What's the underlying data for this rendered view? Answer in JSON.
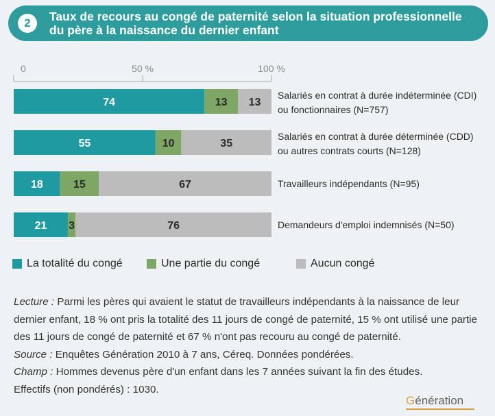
{
  "header": {
    "figure_number": "2",
    "title_line1": "Taux de recours au congé de paternité selon la situation professionnelle",
    "title_line2": "du père à la naissance du dernier enfant"
  },
  "chart_data": {
    "type": "bar",
    "orientation": "horizontal",
    "stacked": true,
    "axis_ticks": [
      "0",
      "50 %",
      "100 %"
    ],
    "xlim": [
      0,
      100
    ],
    "categories": [
      [
        "Salariés en contrat à durée indéterminée (CDI)",
        "ou fonctionnaires (N=757)"
      ],
      [
        "Salariés en contrat à durée déterminée (CDD)",
        "ou autres contrats courts (N=128)"
      ],
      [
        "Travailleurs indépendants (N=95)"
      ],
      [
        "Demandeurs d'emploi indemnisés (N=50)"
      ]
    ],
    "series": [
      {
        "name": "La totalité du congé",
        "color": "#1f9aa0",
        "values": [
          74,
          55,
          18,
          21
        ]
      },
      {
        "name": "Une partie du congé",
        "color": "#7ea765",
        "values": [
          13,
          10,
          15,
          3
        ]
      },
      {
        "name": "Aucun congé",
        "color": "#bdbcbc",
        "values": [
          13,
          35,
          67,
          76
        ]
      }
    ],
    "legend_position": "bottom-left",
    "grid": false
  },
  "notes": {
    "lecture_label": "Lecture :",
    "lecture_text": " Parmi les pères qui avaient le statut de travailleurs indépendants à la naissance de leur dernier enfant, 18 % ont pris la totalité des 11 jours de congé de paternité, 15 % ont utilisé une partie des 11 jours de congé de paternité et 67 % n'ont pas recouru au congé de paternité.",
    "source_label": "Source :",
    "source_text": " Enquêtes Génération 2010 à 7 ans, Céreq. Données pondérées.",
    "champ_label": "Champ :",
    "champ_text": " Hommes devenus père d'un enfant dans les 7 années suivant la fin des études.",
    "effectifs_text": "Effectifs (non pondérés) : 1030."
  },
  "brand": {
    "first_letter": "G",
    "rest": "énération"
  }
}
